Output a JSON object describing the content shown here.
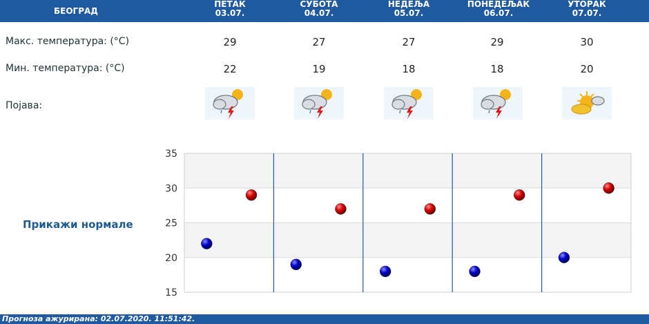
{
  "header": {
    "city": "БЕОГРАД",
    "days": [
      {
        "name": "ПЕТАК",
        "date": "03.07."
      },
      {
        "name": "СУБОТА",
        "date": "04.07."
      },
      {
        "name": "НЕДЕЉА",
        "date": "05.07."
      },
      {
        "name": "ПОНЕДЕЉАК",
        "date": "06.07."
      },
      {
        "name": "УТОРАК",
        "date": "07.07."
      }
    ]
  },
  "rows": {
    "max_label": "Макс. температура: (°C)",
    "min_label": "Мин. температура: (°C)",
    "phenomenon_label": "Појава:",
    "max": [
      "29",
      "27",
      "27",
      "29",
      "30"
    ],
    "min": [
      "22",
      "19",
      "18",
      "18",
      "20"
    ],
    "icons": [
      "thunderstorm-partly-sunny-icon",
      "thunderstorm-partly-sunny-icon",
      "thunderstorm-partly-sunny-icon",
      "thunderstorm-partly-sunny-icon",
      "partly-cloudy-sunny-icon"
    ]
  },
  "show_normals_label": "Прикажи нормале",
  "chart_data": {
    "type": "scatter",
    "categories": [
      "03.07.",
      "04.07.",
      "05.07.",
      "06.07.",
      "07.07."
    ],
    "series": [
      {
        "values": [
          29,
          27,
          27,
          29,
          30
        ],
        "color": "#cc0000"
      },
      {
        "values": [
          22,
          19,
          18,
          18,
          20
        ],
        "color": "#0000b0"
      }
    ],
    "ylim": [
      15,
      35
    ],
    "yticks": [
      "15",
      "20",
      "25",
      "30",
      "35"
    ],
    "grid": true
  },
  "footer": {
    "text": "Прогноза ажурирана:  02.07.2020. 11:51:42."
  }
}
